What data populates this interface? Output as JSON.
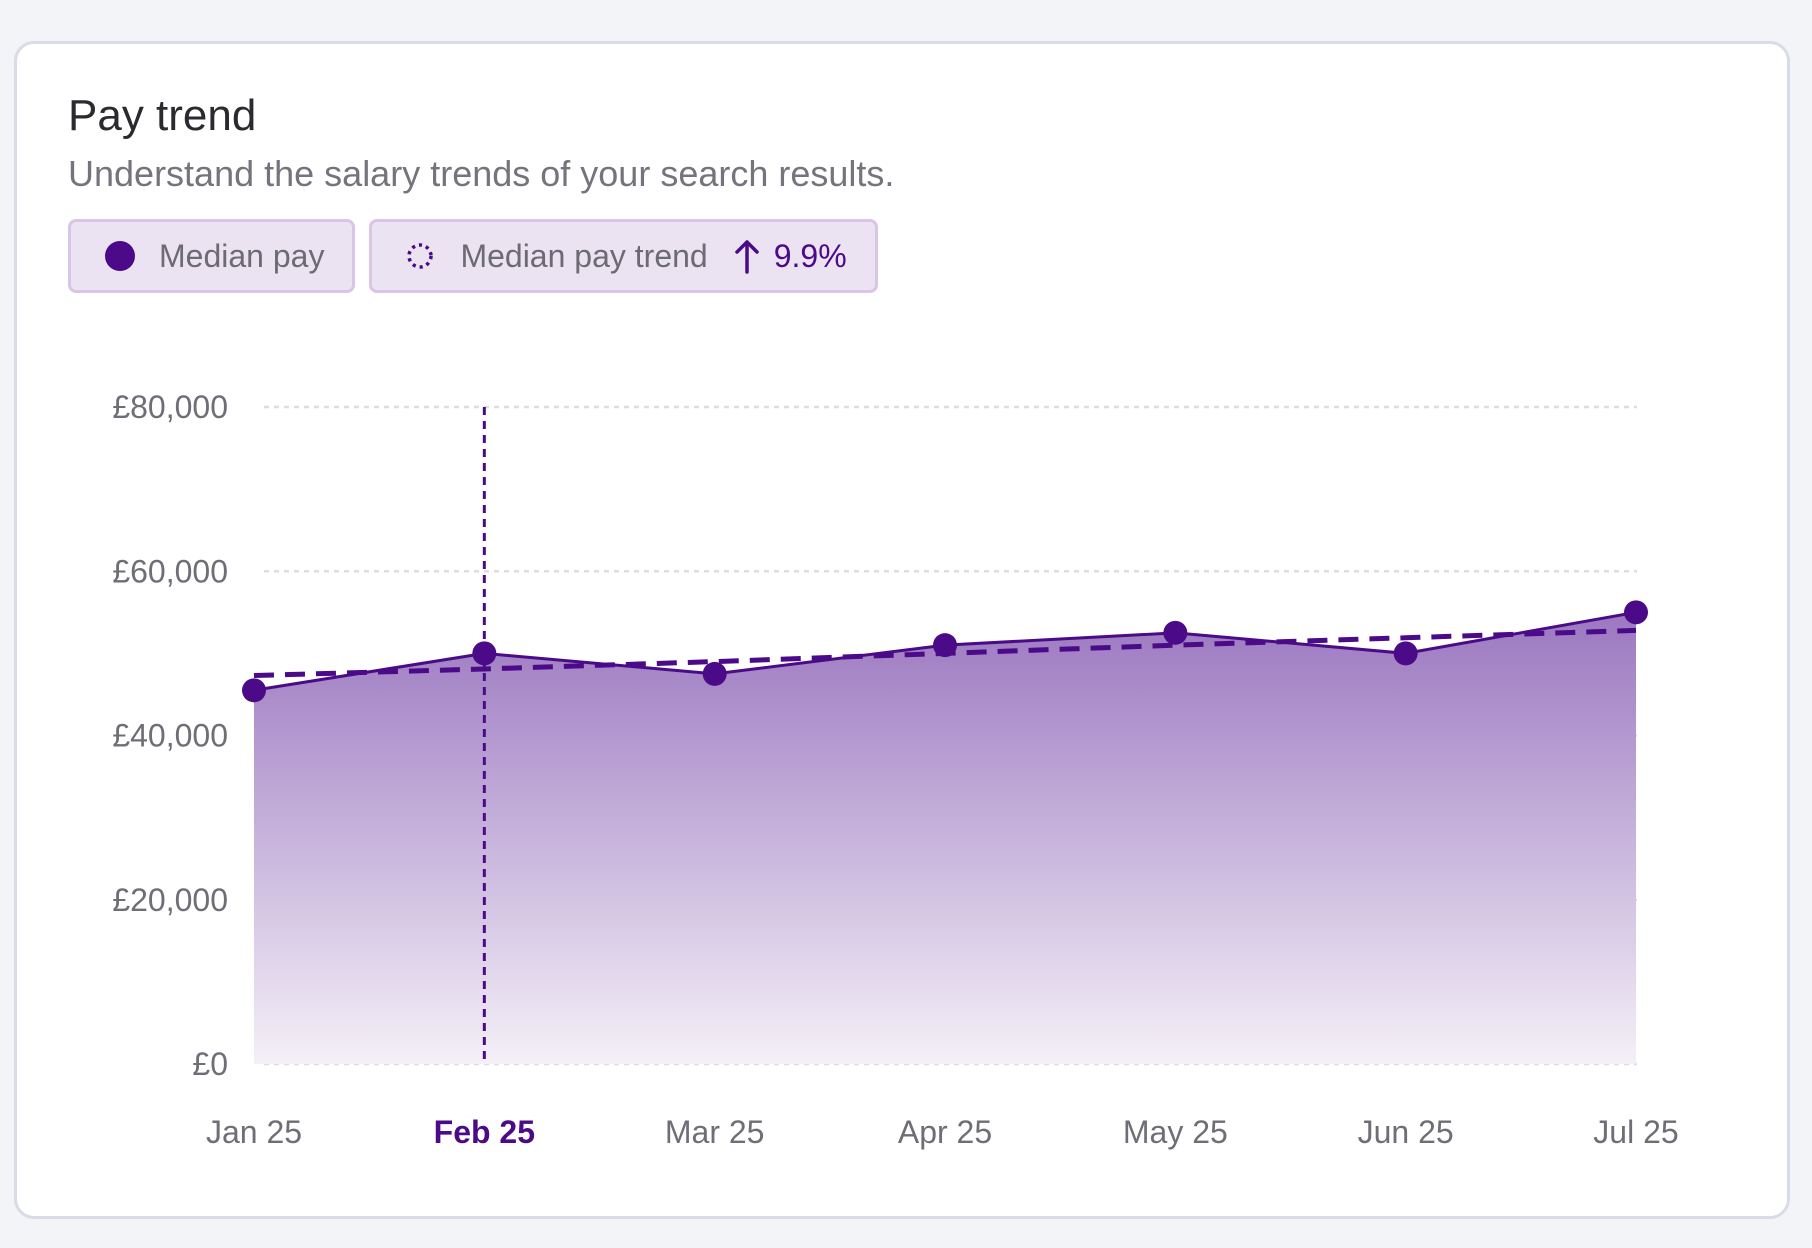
{
  "card": {
    "title": "Pay trend",
    "subtitle": "Understand the salary trends of your search results."
  },
  "legend": {
    "median_pay": {
      "label": "Median pay",
      "icon": "filled-circle-icon"
    },
    "median_pay_trend": {
      "label": "Median pay trend",
      "icon": "dotted-circle-icon",
      "arrow_icon": "arrow-up-icon",
      "change": "9.9%"
    }
  },
  "colors": {
    "accent": "#4b0a87",
    "area_top": "#9b77c0",
    "area_bottom": "#f4f0f7",
    "grid": "#dcdce2"
  },
  "chart_data": {
    "type": "area",
    "categories": [
      "Jan 25",
      "Feb 25",
      "Mar 25",
      "Apr 25",
      "May 25",
      "Jun 25",
      "Jul 25"
    ],
    "series": [
      {
        "name": "Median pay",
        "style": "area+line+markers",
        "values": [
          45500,
          50000,
          47500,
          51000,
          52500,
          50000,
          55000
        ]
      },
      {
        "name": "Median pay trend",
        "style": "dashed",
        "values": [
          47300,
          48100,
          49000,
          50000,
          51000,
          51900,
          52800
        ]
      }
    ],
    "y_ticks": [
      0,
      20000,
      40000,
      60000,
      80000
    ],
    "y_tick_labels": [
      "£0",
      "£20,000",
      "£40,000",
      "£60,000",
      "£80,000"
    ],
    "ylim": [
      0,
      80000
    ],
    "grid": true,
    "highlighted_category": "Feb 25"
  }
}
